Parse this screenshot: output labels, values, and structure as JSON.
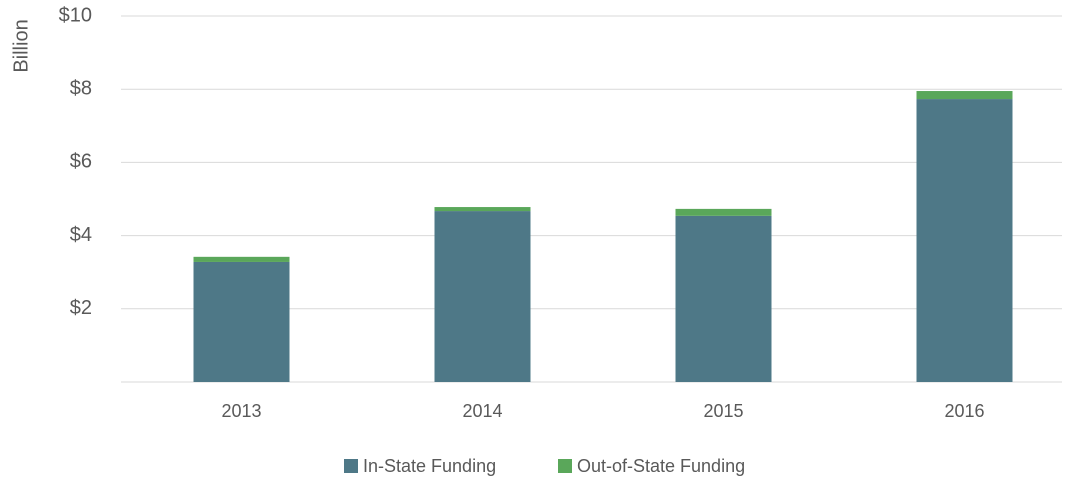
{
  "chart_data": {
    "type": "stacked_bar",
    "y_axis_label": "Billion",
    "categories": [
      "2013",
      "2014",
      "2015",
      "2016"
    ],
    "series": [
      {
        "name": "In-State Funding",
        "color": "#4e7887",
        "values": [
          3.28,
          4.67,
          4.54,
          7.73
        ]
      },
      {
        "name": "Out-of-State Funding",
        "color": "#5aa75a",
        "values": [
          0.14,
          0.11,
          0.19,
          0.22
        ]
      }
    ],
    "ylim": [
      0,
      10
    ],
    "yticks": [
      {
        "value": 2,
        "label": "$2"
      },
      {
        "value": 4,
        "label": "$4"
      },
      {
        "value": 6,
        "label": "$6"
      },
      {
        "value": 8,
        "label": "$8"
      },
      {
        "value": 10,
        "label": "$10"
      }
    ],
    "grid": true,
    "legend": "bottom"
  }
}
